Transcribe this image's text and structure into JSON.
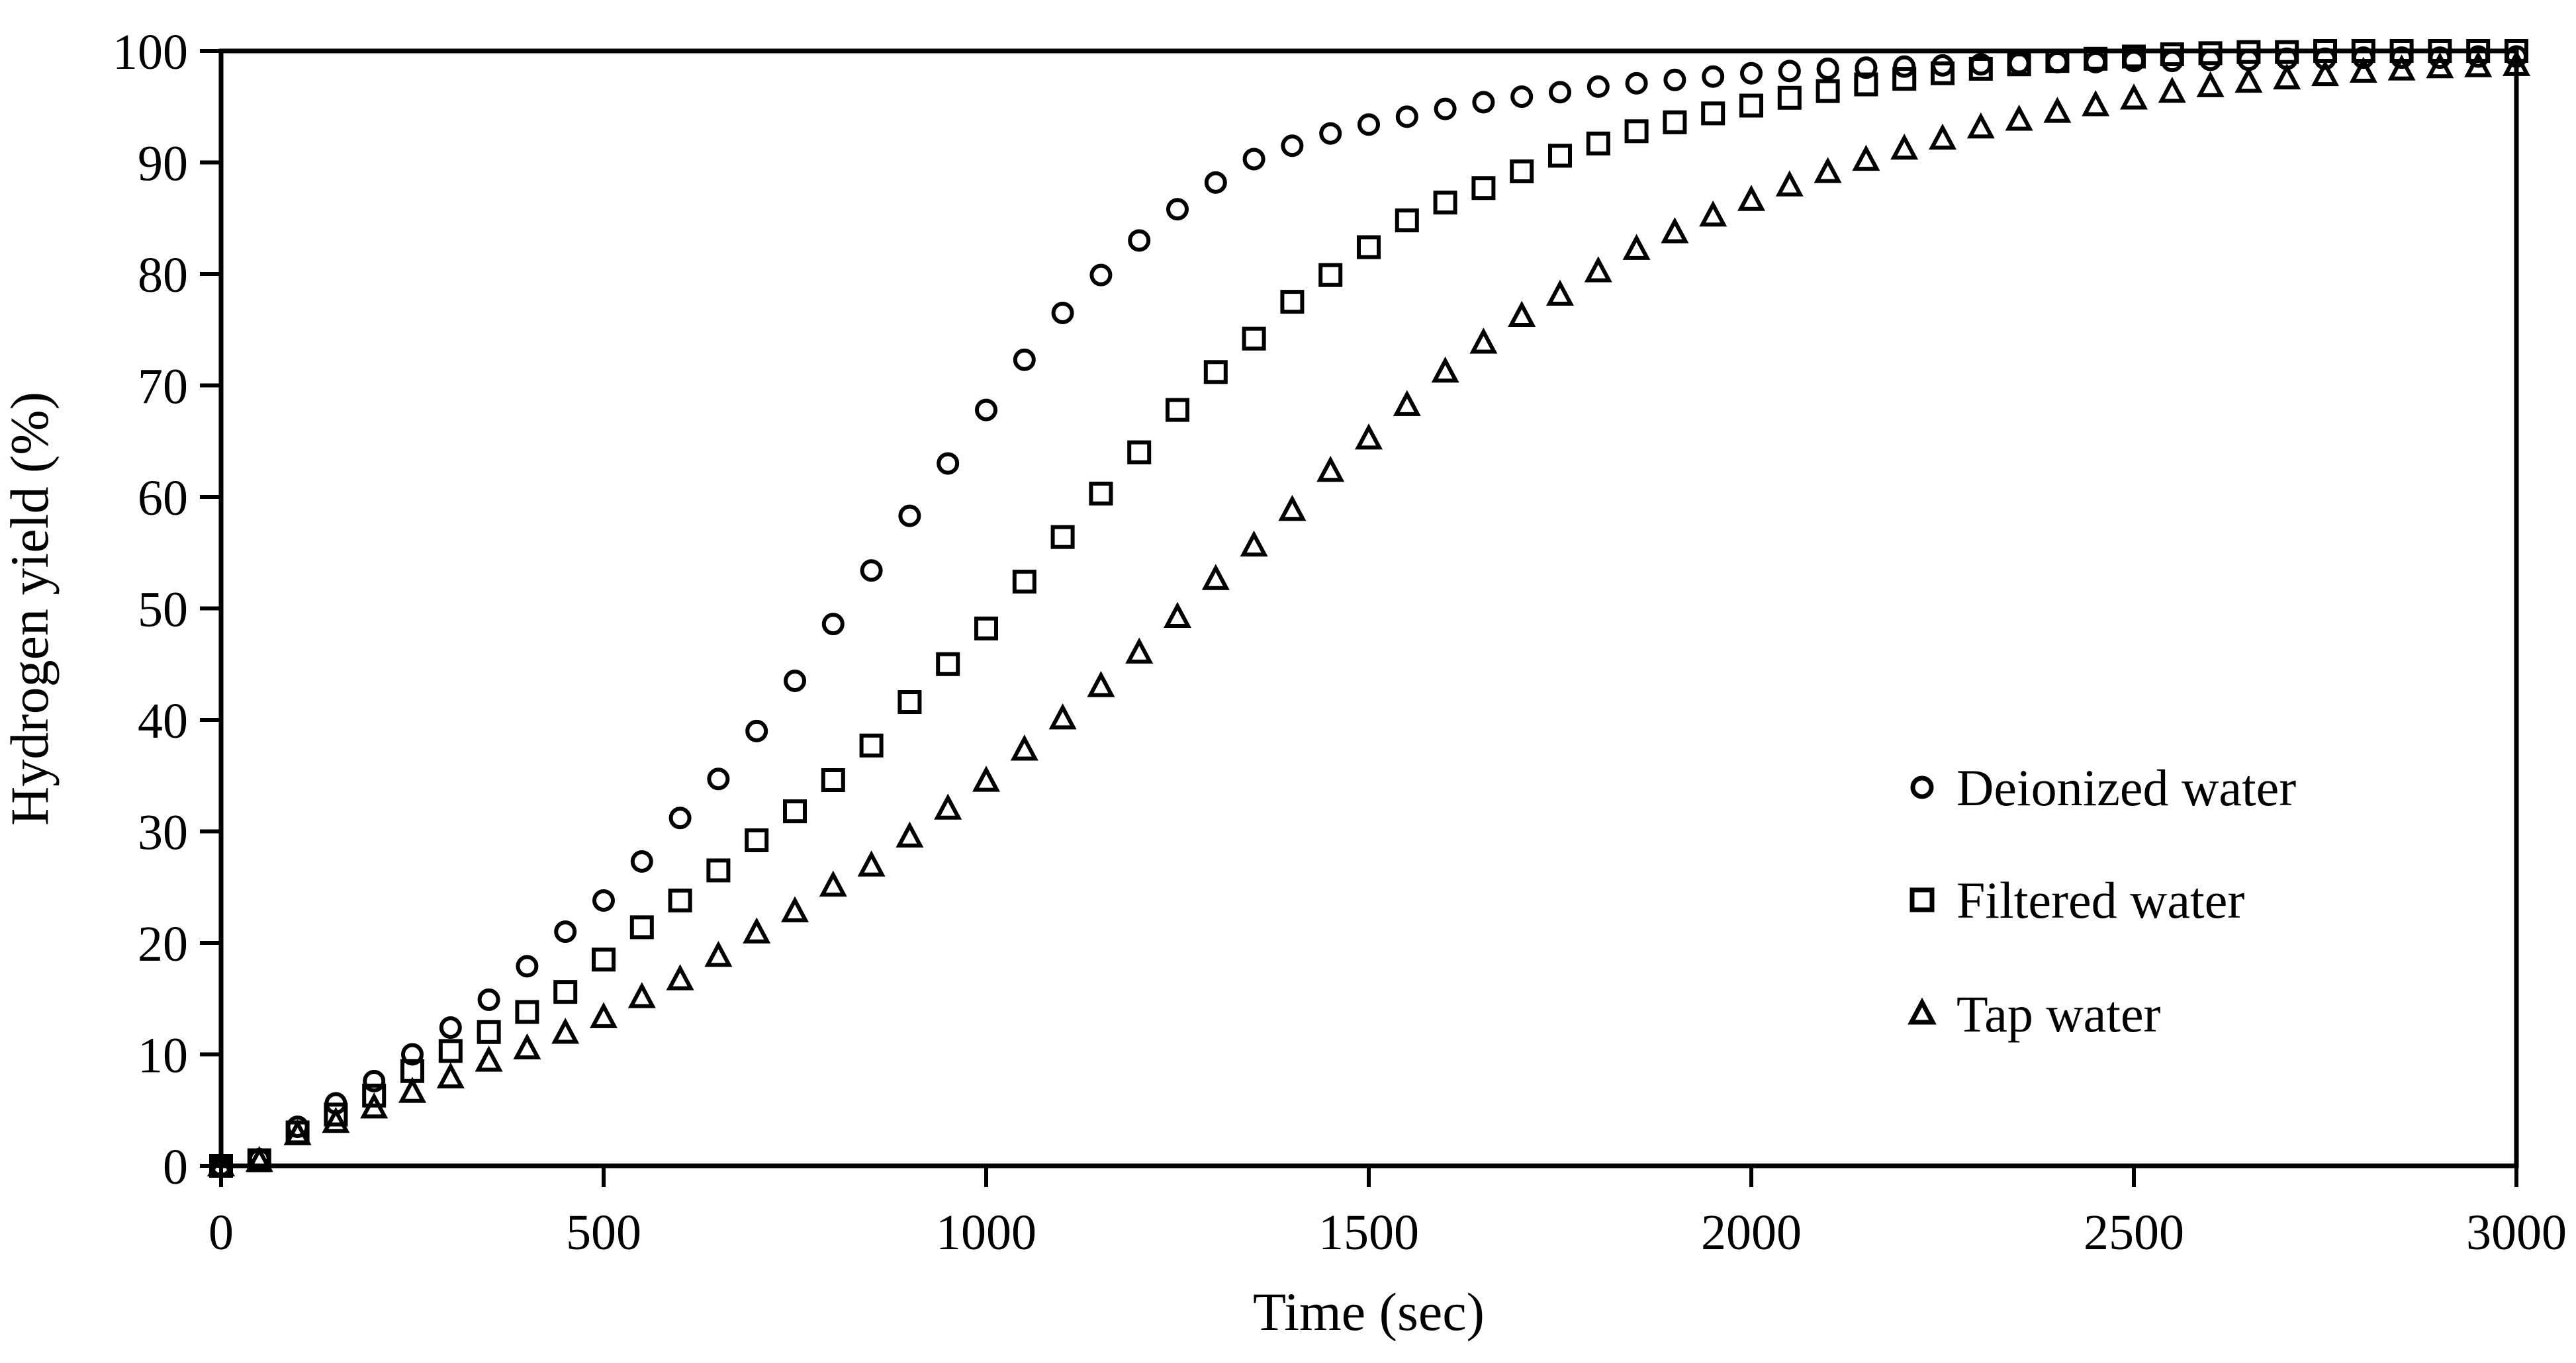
{
  "chart_data": {
    "type": "scatter",
    "title": "",
    "xlabel": "Time (sec)",
    "ylabel": "Hydrogen yield (%)",
    "xlim": [
      0,
      3000
    ],
    "ylim": [
      0,
      100
    ],
    "x_ticks": [
      0,
      500,
      1000,
      1500,
      2000,
      2500,
      3000
    ],
    "y_ticks": [
      0,
      10,
      20,
      30,
      40,
      50,
      60,
      70,
      80,
      90,
      100
    ],
    "grid": false,
    "plot_border": "full-box",
    "legend_position": "right-middle",
    "marker_color": "#000000",
    "background_color": "#ffffff",
    "x": [
      0,
      50,
      100,
      150,
      200,
      250,
      300,
      350,
      400,
      450,
      500,
      550,
      600,
      650,
      700,
      750,
      800,
      850,
      900,
      950,
      1000,
      1050,
      1100,
      1150,
      1200,
      1250,
      1300,
      1350,
      1400,
      1450,
      1500,
      1550,
      1600,
      1650,
      1700,
      1750,
      1800,
      1850,
      1900,
      1950,
      2000,
      2050,
      2100,
      2150,
      2200,
      2250,
      2300,
      2350,
      2400,
      2450,
      2500,
      2550,
      2600,
      2650,
      2700,
      2750,
      2800,
      2850,
      2900,
      2950,
      3000
    ],
    "series": [
      {
        "name": "Deionized water",
        "marker": "circle",
        "values": [
          0,
          0.6,
          3.5,
          5.6,
          7.6,
          10,
          12.4,
          14.9,
          17.9,
          21,
          23.8,
          27.3,
          31.2,
          34.7,
          39,
          43.5,
          48.6,
          53.4,
          58.3,
          63,
          67.8,
          72.3,
          76.5,
          79.9,
          83,
          85.8,
          88.2,
          90.3,
          91.5,
          92.6,
          93.4,
          94.1,
          94.8,
          95.4,
          95.9,
          96.3,
          96.8,
          97.1,
          97.4,
          97.7,
          98,
          98.2,
          98.4,
          98.5,
          98.6,
          98.7,
          98.8,
          98.9,
          99,
          99,
          99.1,
          99.1,
          99.2,
          99.2,
          99.3,
          99.3,
          99.4,
          99.4,
          99.4,
          99.5,
          99.5
        ]
      },
      {
        "name": "Filtered water",
        "marker": "square",
        "values": [
          0,
          0.5,
          3,
          4.6,
          6.3,
          8.5,
          10.3,
          12,
          13.8,
          15.6,
          18.5,
          21.4,
          23.8,
          26.5,
          29.2,
          31.8,
          34.6,
          37.7,
          41.6,
          45,
          48.2,
          52.4,
          56.4,
          60.3,
          64,
          67.8,
          71.2,
          74.2,
          77.5,
          79.9,
          82.4,
          84.8,
          86.4,
          87.7,
          89.2,
          90.6,
          91.7,
          92.8,
          93.6,
          94.4,
          95.1,
          95.8,
          96.4,
          97,
          97.5,
          98,
          98.4,
          98.8,
          99.1,
          99.3,
          99.5,
          99.7,
          99.8,
          99.9,
          99.9,
          100,
          100,
          100,
          100,
          100,
          100
        ]
      },
      {
        "name": "Tap water",
        "marker": "triangle",
        "values": [
          0,
          0.4,
          2.8,
          3.9,
          5.2,
          6.6,
          7.9,
          9.4,
          10.5,
          11.9,
          13.3,
          15.1,
          16.7,
          18.8,
          20.9,
          22.8,
          25.1,
          26.9,
          29.5,
          32,
          34.5,
          37.3,
          40.1,
          43,
          46,
          49.2,
          52.6,
          55.6,
          58.8,
          62.3,
          65.2,
          68.2,
          71.2,
          73.8,
          76.2,
          78.1,
          80.2,
          82.2,
          83.7,
          85.2,
          86.6,
          87.9,
          89.1,
          90.2,
          91.2,
          92.1,
          93.1,
          93.8,
          94.5,
          95.1,
          95.7,
          96.3,
          96.8,
          97.2,
          97.5,
          97.8,
          98.1,
          98.3,
          98.5,
          98.6,
          98.7
        ]
      }
    ]
  }
}
